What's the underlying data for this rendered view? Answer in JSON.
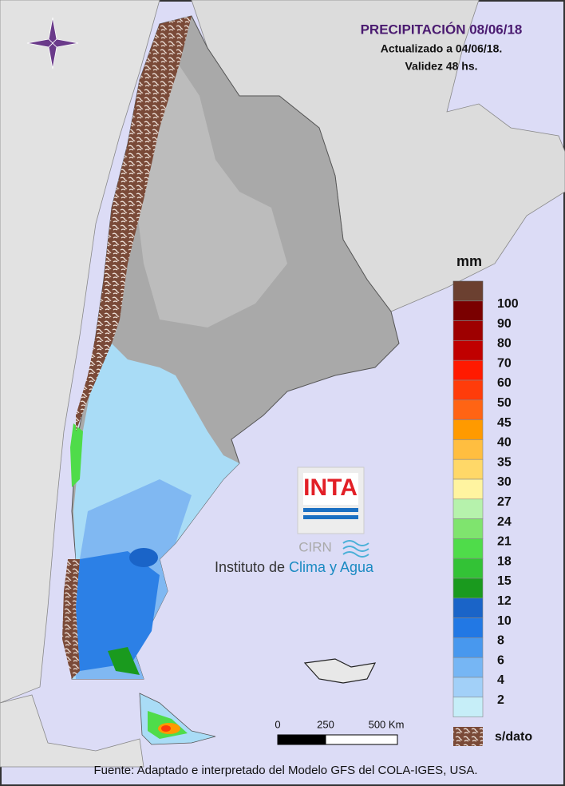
{
  "header": {
    "title": "PRECIPITACIÓN 08/06/18",
    "updated": "Actualizado a 04/06/18.",
    "validity": "Validez 48 hs."
  },
  "legend": {
    "unit": "mm",
    "no_data_color": "#6b4030",
    "items": [
      {
        "label": 100,
        "color": "#7a0000"
      },
      {
        "label": 90,
        "color": "#9e0000"
      },
      {
        "label": 80,
        "color": "#c00000"
      },
      {
        "label": 70,
        "color": "#ff1a00"
      },
      {
        "label": 60,
        "color": "#ff3c0a"
      },
      {
        "label": 50,
        "color": "#ff6414"
      },
      {
        "label": 45,
        "color": "#ff9a00"
      },
      {
        "label": 40,
        "color": "#ffbe40"
      },
      {
        "label": 35,
        "color": "#ffd868"
      },
      {
        "label": 30,
        "color": "#fff4a0"
      },
      {
        "label": 27,
        "color": "#b6f2ac"
      },
      {
        "label": 24,
        "color": "#7fe46e"
      },
      {
        "label": 21,
        "color": "#4fdc4a"
      },
      {
        "label": 18,
        "color": "#33c236"
      },
      {
        "label": 15,
        "color": "#1a9a1e"
      },
      {
        "label": 12,
        "color": "#1a64c8"
      },
      {
        "label": 10,
        "color": "#2278e4"
      },
      {
        "label": 8,
        "color": "#4898ee"
      },
      {
        "label": 6,
        "color": "#76b6f4"
      },
      {
        "label": 4,
        "color": "#a2d0f8"
      },
      {
        "label": 2,
        "color": "#c6eef8"
      }
    ],
    "no_data": "s/dato"
  },
  "scale": {
    "labels": [
      "0",
      "250",
      "500 Km"
    ]
  },
  "logo": {
    "brand": "INTA",
    "center": "CIRN",
    "institute_prefix": "Instituto de",
    "institute_name": "Clima y Agua"
  },
  "footer": {
    "source": "Fuente: Adaptado e interpretado del Modelo GFS del COLA-IGES, USA."
  }
}
